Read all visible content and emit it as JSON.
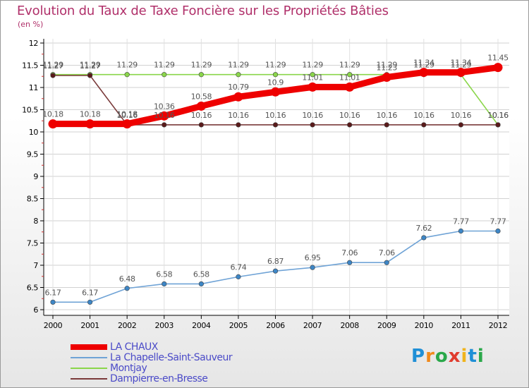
{
  "header": {
    "title": "Evolution du Taux de Taxe Foncière sur les Propriétés Bâties",
    "subtitle": "(en %)"
  },
  "logo": {
    "text": "Proxiti",
    "letters": [
      "P",
      "r",
      "o",
      "x",
      "i",
      "t",
      "i"
    ],
    "colors": [
      "#1f8fd6",
      "#f08a1c",
      "#2aa84a",
      "#e03c2e",
      "#f0b41c",
      "#1f8fd6",
      "#2aa84a"
    ]
  },
  "chart_data": {
    "type": "line",
    "title": "Evolution du Taux de Taxe Foncière sur les Propriétés Bâties",
    "ylabel": "(en %)",
    "xlabel": "",
    "x": [
      "2000",
      "2001",
      "2002",
      "2003",
      "2004",
      "2005",
      "2006",
      "2007",
      "2008",
      "2009",
      "2010",
      "2011",
      "2012"
    ],
    "ylim": [
      6,
      12
    ],
    "yticks": [
      "6",
      "6.5",
      "7",
      "7.5",
      "8",
      "8.5",
      "9",
      "9.5",
      "10",
      "10.5",
      "11",
      "11.5",
      "12"
    ],
    "grid": true,
    "legend_position": "bottom-left",
    "series": [
      {
        "name": "Montjay",
        "color": "#8ad64a",
        "values": [
          11.29,
          11.29,
          11.29,
          11.29,
          11.29,
          11.29,
          11.29,
          11.29,
          11.29,
          11.29,
          11.29,
          11.29,
          10.16
        ],
        "labels": [
          "11.29",
          "11.29",
          "11.29",
          "11.29",
          "11.29",
          "11.29",
          "11.29",
          "11.29",
          "11.29",
          "11.29",
          "11.29",
          "11.29",
          "10.16"
        ]
      },
      {
        "name": "Dampierre-en-Bresse",
        "color": "#7a3a3a",
        "values": [
          11.27,
          11.27,
          10.16,
          10.16,
          10.16,
          10.16,
          10.16,
          10.16,
          10.16,
          10.16,
          10.16,
          10.16,
          10.16
        ],
        "labels": [
          "11.27",
          "11.27",
          "10.16",
          "10.16",
          "10.16",
          "10.16",
          "10.16",
          "10.16",
          "10.16",
          "10.16",
          "10.16",
          "10.16",
          "10.16"
        ]
      },
      {
        "name": "La Chapelle-Saint-Sauveur",
        "color": "#6fa3d6",
        "values": [
          6.17,
          6.17,
          6.48,
          6.58,
          6.58,
          6.74,
          6.87,
          6.95,
          7.06,
          7.06,
          7.62,
          7.77,
          7.77
        ],
        "labels": [
          "6.17",
          "6.17",
          "6.48",
          "6.58",
          "6.58",
          "6.74",
          "6.87",
          "6.95",
          "7.06",
          "7.06",
          "7.62",
          "7.77",
          "7.77"
        ]
      },
      {
        "name": "LA CHAUX",
        "color": "#ee0000",
        "values": [
          10.18,
          10.18,
          10.18,
          10.36,
          10.58,
          10.79,
          10.9,
          11.01,
          11.01,
          11.23,
          11.34,
          11.34,
          11.45
        ],
        "labels": [
          "10.18",
          "10.18",
          "10.18",
          "10.36",
          "10.58",
          "10.79",
          "10.9",
          "11.01",
          "11.01",
          "11.23",
          "11.34",
          "11.34",
          "11.45"
        ]
      }
    ]
  },
  "legend": [
    {
      "name": "LA CHAUX",
      "color": "#ee0000",
      "thickness": 8
    },
    {
      "name": "La Chapelle-Saint-Sauveur",
      "color": "#6fa3d6",
      "thickness": 2
    },
    {
      "name": "Montjay",
      "color": "#8ad64a",
      "thickness": 2
    },
    {
      "name": "Dampierre-en-Bresse",
      "color": "#7a3a3a",
      "thickness": 2
    }
  ]
}
